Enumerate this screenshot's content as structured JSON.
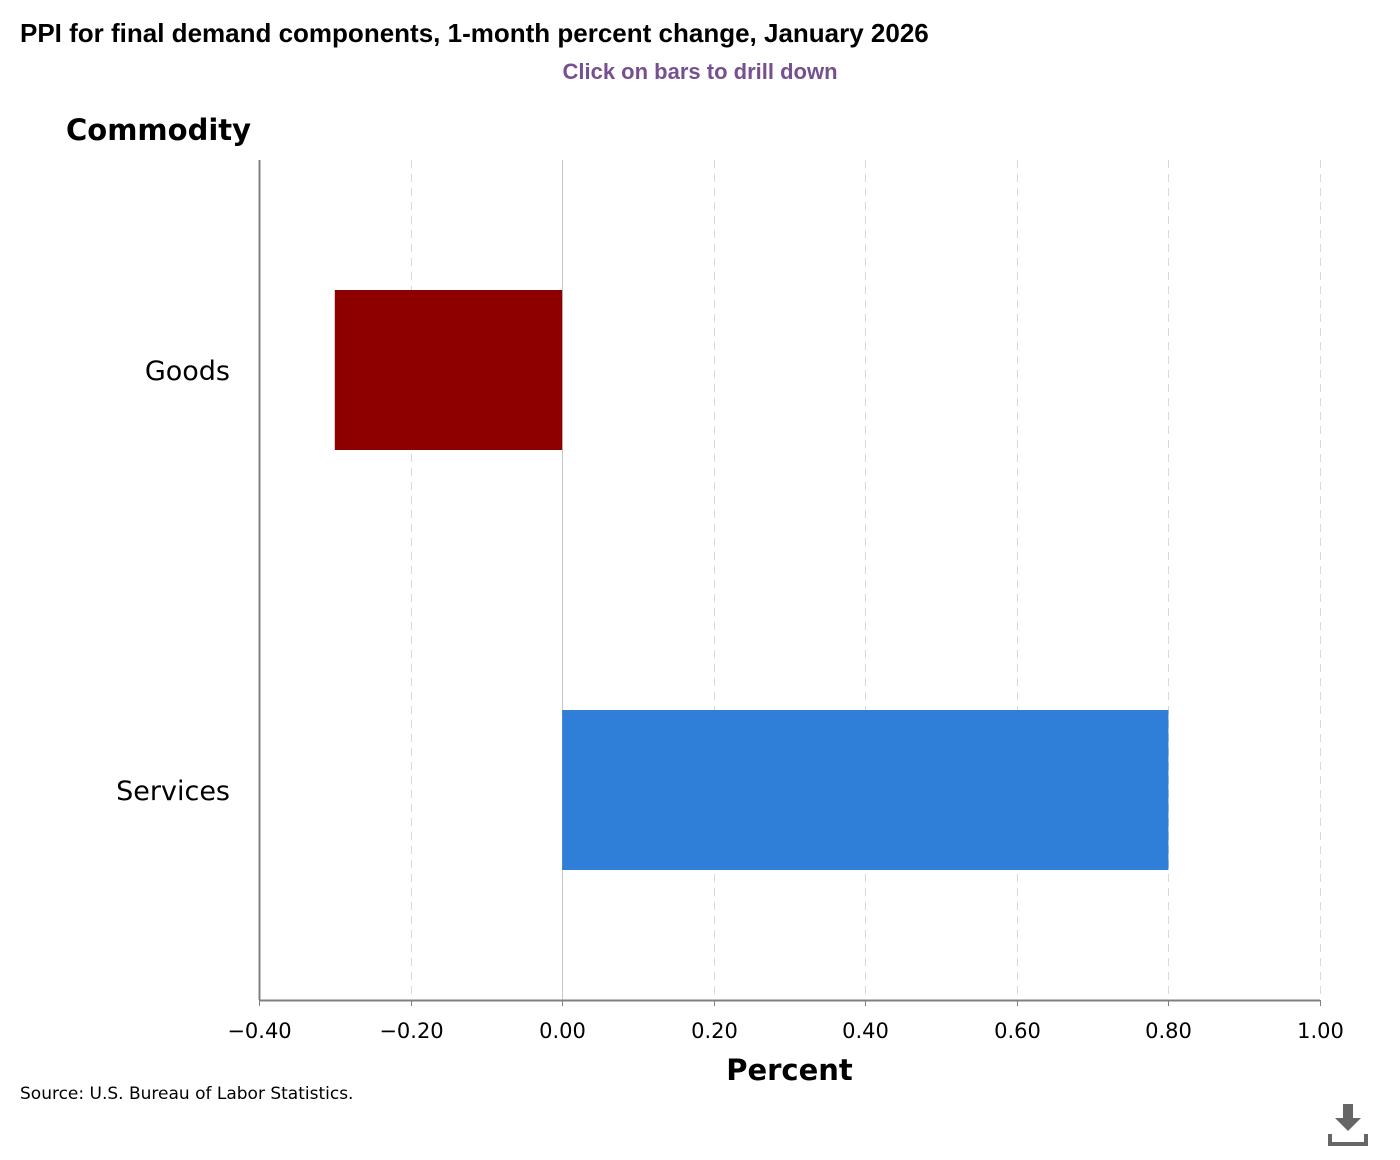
{
  "title": "PPI for final demand components, 1-month percent change, January 2026",
  "subtitle": "Click on bars to drill down",
  "source": "Source: U.S. Bureau of Labor Statistics.",
  "colors": {
    "subtitle": "#76508f",
    "goods_bar": "#8e0000",
    "services_bar": "#2f7ed8",
    "grid": "#d9d9d9",
    "axis": "#808080",
    "download_icon": "#666666"
  },
  "download_icon": "download-icon",
  "chart_data": {
    "type": "bar",
    "orientation": "horizontal",
    "categories": [
      "Goods",
      "Services"
    ],
    "values": [
      -0.3,
      0.8
    ],
    "bar_colors": [
      "#8e0000",
      "#2f7ed8"
    ],
    "xlabel": "Percent",
    "ylabel": "Commodity",
    "xlim": [
      -0.4,
      1.0
    ],
    "xticks": [
      "−0.40",
      "−0.20",
      "0.00",
      "0.20",
      "0.40",
      "0.60",
      "0.80",
      "1.00"
    ],
    "grid": "vertical dashed",
    "legend": "none"
  }
}
